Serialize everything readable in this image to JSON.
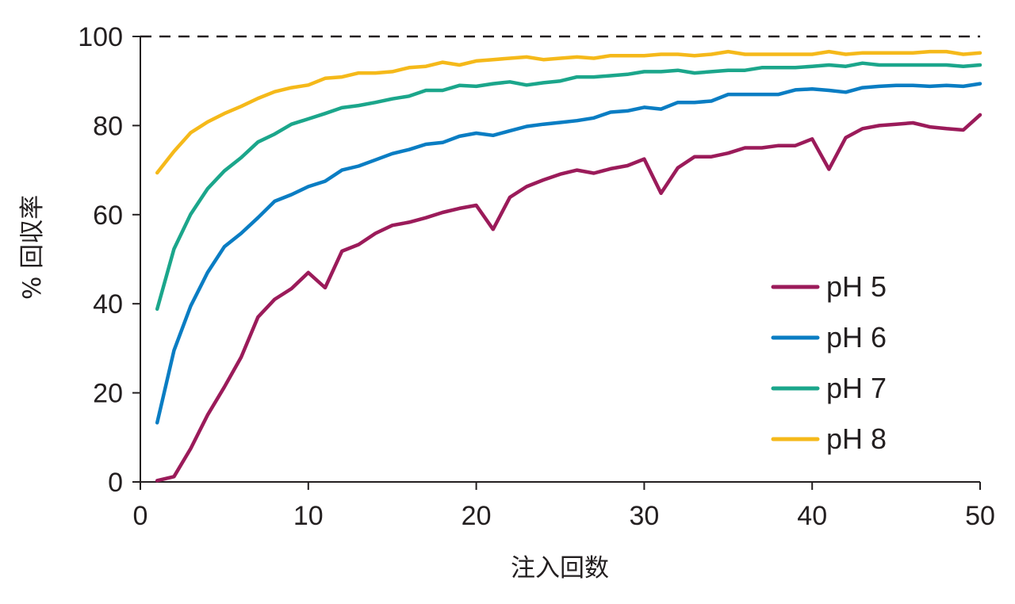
{
  "chart_data": {
    "type": "line",
    "title": "",
    "xlabel": "注入回数",
    "ylabel": "% 回収率",
    "xlim": [
      0,
      50
    ],
    "ylim": [
      0,
      100
    ],
    "x_ticks": [
      "0",
      "10",
      "20",
      "30",
      "40",
      "50"
    ],
    "y_ticks": [
      "0",
      "20",
      "40",
      "60",
      "80",
      "100"
    ],
    "reference_line": {
      "y": 100,
      "style": "dashed"
    },
    "legend_position": "right",
    "x": [
      1,
      2,
      3,
      4,
      5,
      6,
      7,
      8,
      9,
      10,
      11,
      12,
      13,
      14,
      15,
      16,
      17,
      18,
      19,
      20,
      21,
      22,
      23,
      24,
      25,
      26,
      27,
      28,
      29,
      30,
      31,
      32,
      33,
      34,
      35,
      36,
      37,
      38,
      39,
      40,
      41,
      42,
      43,
      44,
      45,
      46,
      47,
      48,
      49,
      50
    ],
    "series": [
      {
        "name": "pH 5",
        "color": "#9b1b5a",
        "values": [
          0.3,
          1.2,
          7.5,
          15,
          21.3,
          28,
          37,
          41,
          43.4,
          47,
          43.6,
          51.8,
          53.3,
          55.8,
          57.6,
          58.3,
          59.3,
          60.5,
          61.4,
          62.1,
          56.7,
          63.9,
          66.3,
          67.8,
          69.1,
          70,
          69.3,
          70.3,
          71,
          72.5,
          64.8,
          70.5,
          73,
          73,
          73.8,
          75,
          75,
          75.5,
          75.5,
          77,
          70.2,
          77.3,
          79.3,
          80,
          80.3,
          80.6,
          79.7,
          79.3,
          79,
          82.4
        ]
      },
      {
        "name": "pH 6",
        "color": "#0a7dc3",
        "values": [
          13.3,
          29.5,
          39.5,
          47,
          52.8,
          55.8,
          59.3,
          63,
          64.5,
          66.3,
          67.5,
          70,
          70.9,
          72.3,
          73.7,
          74.6,
          75.8,
          76.2,
          77.6,
          78.3,
          77.8,
          78.8,
          79.8,
          80.3,
          80.7,
          81.1,
          81.7,
          83,
          83.3,
          84.1,
          83.7,
          85.2,
          85.2,
          85.5,
          87,
          87,
          87,
          87,
          88,
          88.2,
          87.9,
          87.5,
          88.5,
          88.8,
          89,
          89,
          88.8,
          89,
          88.8,
          89.4
        ]
      },
      {
        "name": "pH 7",
        "color": "#1ba68b",
        "values": [
          38.8,
          52.3,
          60.1,
          65.8,
          69.8,
          72.8,
          76.3,
          78.1,
          80.3,
          81.5,
          82.7,
          84,
          84.5,
          85.2,
          86,
          86.6,
          87.9,
          87.9,
          89,
          88.8,
          89.4,
          89.8,
          89.1,
          89.6,
          90,
          90.9,
          90.9,
          91.2,
          91.5,
          92.1,
          92.1,
          92.4,
          91.8,
          92.1,
          92.4,
          92.4,
          93,
          93,
          93,
          93.3,
          93.6,
          93.3,
          94,
          93.6,
          93.6,
          93.6,
          93.6,
          93.6,
          93.3,
          93.6
        ]
      },
      {
        "name": "pH 8",
        "color": "#f5b91a",
        "values": [
          69.4,
          74.2,
          78.4,
          80.8,
          82.7,
          84.3,
          86.1,
          87.6,
          88.5,
          89.1,
          90.6,
          90.9,
          91.8,
          91.8,
          92.1,
          93,
          93.3,
          94.2,
          93.6,
          94.5,
          94.8,
          95.1,
          95.4,
          94.8,
          95.1,
          95.4,
          95.1,
          95.7,
          95.7,
          95.7,
          96,
          96,
          95.7,
          96,
          96.6,
          96,
          96,
          96,
          96,
          96,
          96.6,
          96,
          96.3,
          96.3,
          96.3,
          96.3,
          96.6,
          96.6,
          96,
          96.3
        ]
      }
    ]
  }
}
